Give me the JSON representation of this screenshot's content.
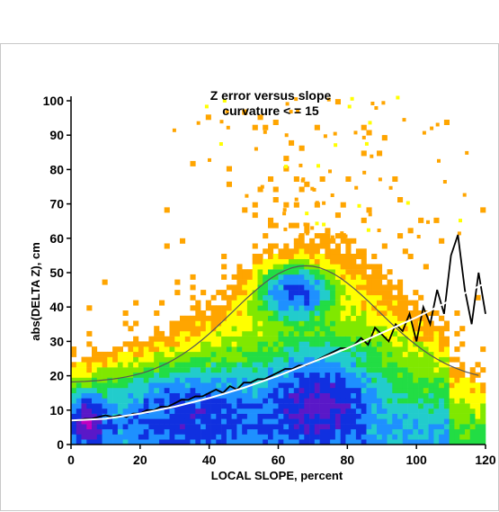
{
  "chart_data": {
    "type": "heatmap",
    "title": "Z error versus slope",
    "subtitle": "curvature < = 15",
    "xlabel": "LOCAL SLOPE, percent",
    "ylabel": "abs(DELTA Z), cm",
    "xlim": [
      0,
      120
    ],
    "ylim": [
      0,
      100
    ],
    "x_ticks": [
      "0",
      "20",
      "40",
      "60",
      "80",
      "100",
      "120"
    ],
    "y_ticks": [
      "0",
      "10",
      "20",
      "30",
      "40",
      "50",
      "60",
      "70",
      "80",
      "90",
      "100"
    ],
    "grid": false,
    "color_scale": [
      "#ffa500",
      "#ffff00",
      "#80e800",
      "#22dd44",
      "#22cccc",
      "#1e90ff",
      "#1030e0",
      "#5a18c8",
      "#c000c0",
      "#ff00ff"
    ],
    "series": [
      {
        "style": "black-line",
        "x": [
          0,
          2,
          4,
          6,
          8,
          10,
          12,
          14,
          16,
          18,
          20,
          22,
          24,
          26,
          28,
          30,
          32,
          34,
          36,
          38,
          40,
          42,
          44,
          46,
          48,
          50,
          52,
          54,
          56,
          58,
          60,
          62,
          64,
          66,
          68,
          70,
          72,
          74,
          76,
          78,
          80,
          82,
          84,
          86,
          88,
          90,
          92,
          94,
          96,
          98,
          100,
          102,
          104,
          106,
          108,
          110,
          112,
          114,
          116,
          118,
          120
        ],
        "y": [
          7,
          7,
          7.5,
          7.5,
          8,
          8.5,
          8,
          8.5,
          8,
          9,
          9,
          10,
          10,
          11,
          11,
          12,
          13,
          13,
          14,
          14,
          15,
          16,
          15,
          17,
          16,
          18,
          18,
          19,
          19,
          20,
          21,
          22,
          22,
          23,
          23,
          24,
          25,
          26,
          27,
          28,
          28,
          29,
          31,
          29,
          34,
          32,
          30,
          35,
          33,
          38,
          30,
          40,
          35,
          45,
          38,
          55,
          61,
          45,
          35,
          50,
          38
        ]
      },
      {
        "style": "white-fit-curve",
        "x": [
          0,
          10,
          20,
          30,
          40,
          50,
          60,
          70,
          80,
          90,
          100,
          110,
          120
        ],
        "y": [
          7,
          7.5,
          9,
          11,
          13.5,
          16.5,
          20,
          24,
          28,
          32.5,
          37,
          42,
          47
        ]
      }
    ],
    "density_clusters": [
      {
        "x": 5,
        "y": 7,
        "sx": 4,
        "sy": 6,
        "weight": 9
      },
      {
        "x": 72,
        "y": 12,
        "sx": 12,
        "sy": 12,
        "weight": 6
      },
      {
        "x": 65,
        "y": 44,
        "sx": 8,
        "sy": 6,
        "weight": 5
      },
      {
        "x": 35,
        "y": 10,
        "sx": 20,
        "sy": 10,
        "weight": 4
      }
    ],
    "legend": []
  }
}
